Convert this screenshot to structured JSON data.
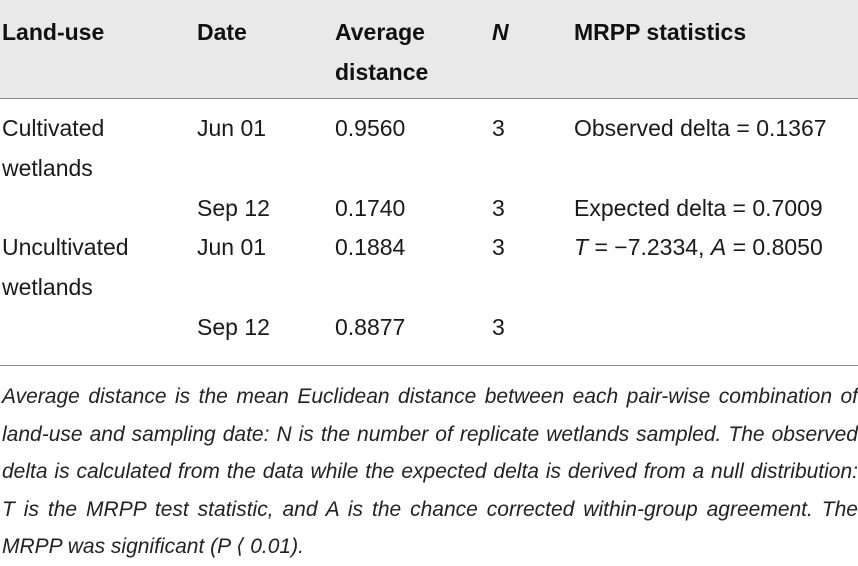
{
  "table": {
    "headers": {
      "land_use": "Land-use",
      "date": "Date",
      "avg_line1": "Average",
      "avg_line2": "distance",
      "n": "N",
      "mrpp": "MRPP statistics"
    },
    "rows": [
      {
        "land_use_line1": "Cultivated",
        "land_use_line2": "wetlands",
        "date": "Jun 01",
        "avg": "0.9560",
        "n": "3",
        "mrpp": "Observed delta = 0.1367"
      },
      {
        "date": "Sep 12",
        "avg": "0.1740",
        "n": "3",
        "mrpp": "Expected delta = 0.7009"
      },
      {
        "land_use_line1": "Uncultivated",
        "land_use_line2": "wetlands",
        "date": "Jun 01",
        "avg": "0.1884",
        "n": "3",
        "mrpp_T": "T",
        "mrpp_T_val": " = −7.2334, ",
        "mrpp_A": "A",
        "mrpp_A_val": " = 0.8050"
      },
      {
        "date": "Sep 12",
        "avg": "0.8877",
        "n": "3",
        "mrpp": ""
      }
    ]
  },
  "caption": "Average distance is the mean Euclidean distance between each pair-wise combination of land-use and sampling date: N is the number of replicate wetlands sampled. The observed delta is calculated from the data while the expected delta is derived from a null distribution: T is the MRPP test statistic, and A is the chance corrected within-group agreement. The MRPP was significant (P ⟨ 0.01)."
}
